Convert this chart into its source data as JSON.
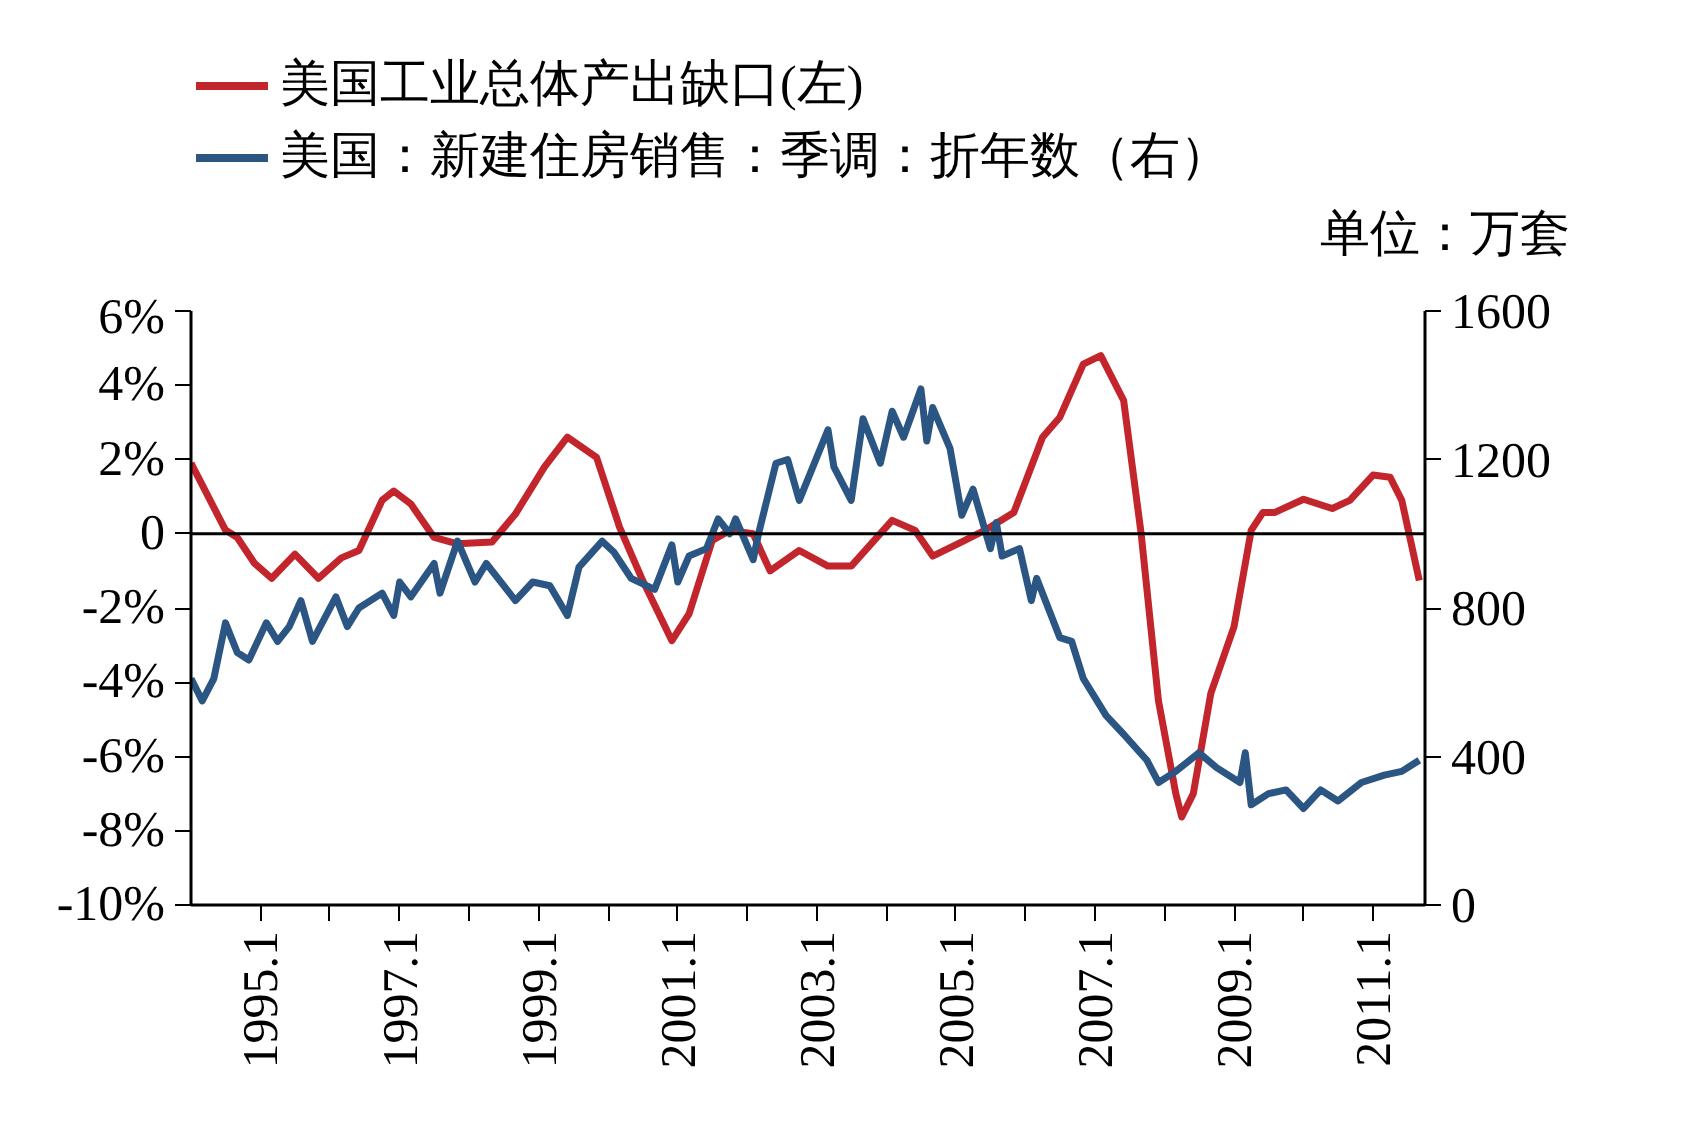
{
  "chart_data": {
    "type": "line",
    "y2label": "单位：万套",
    "xlim": [
      "1994-01",
      "2011-10"
    ],
    "xticks": [
      {
        "value": "1995-01",
        "label": "1995.1"
      },
      {
        "value": "1996-01",
        "label": null
      },
      {
        "value": "1997-01",
        "label": "1997.1"
      },
      {
        "value": "1998-01",
        "label": null
      },
      {
        "value": "1999-01",
        "label": "1999.1"
      },
      {
        "value": "2000-01",
        "label": null
      },
      {
        "value": "2001-01",
        "label": "2001.1"
      },
      {
        "value": "2002-01",
        "label": null
      },
      {
        "value": "2003-01",
        "label": "2003.1"
      },
      {
        "value": "2004-01",
        "label": null
      },
      {
        "value": "2005-01",
        "label": "2005.1"
      },
      {
        "value": "2006-01",
        "label": null
      },
      {
        "value": "2007-01",
        "label": "2007.1"
      },
      {
        "value": "2008-01",
        "label": null
      },
      {
        "value": "2009-01",
        "label": "2009.1"
      },
      {
        "value": "2010-01",
        "label": null
      },
      {
        "value": "2011-01",
        "label": "2011.1"
      }
    ],
    "ylim": [
      -10,
      6
    ],
    "yticks": [
      {
        "value": 6,
        "label": "6%"
      },
      {
        "value": 4,
        "label": "4%"
      },
      {
        "value": 2,
        "label": "2%"
      },
      {
        "value": 0,
        "label": "0"
      },
      {
        "value": -2,
        "label": "-2%"
      },
      {
        "value": -4,
        "label": "-4%"
      },
      {
        "value": -6,
        "label": "-6%"
      },
      {
        "value": -8,
        "label": "-8%"
      },
      {
        "value": -10,
        "label": "-10%"
      }
    ],
    "y2lim": [
      0,
      1600
    ],
    "y2ticks": [
      0,
      400,
      800,
      1200,
      1600
    ],
    "legend": "top left",
    "line_style": "solid",
    "ref_lines": [
      {
        "axis": "y",
        "value": 0,
        "color": "#000000"
      }
    ],
    "series": [
      {
        "name": "美国工业总体产出缺口(左)",
        "color": "#c3252c",
        "x": [
          "1994-01",
          "1994-07",
          "1994-09",
          "1994-12",
          "1995-03",
          "1995-07",
          "1995-11",
          "1996-03",
          "1996-06",
          "1996-10",
          "1996-12",
          "1997-03",
          "1997-07",
          "1997-11",
          "1998-05",
          "1998-09",
          "1999-02",
          "1999-06",
          "1999-11",
          "2000-03",
          "2000-07",
          "2000-12",
          "2001-03",
          "2001-07",
          "2001-10",
          "2002-02",
          "2002-05",
          "2002-10",
          "2003-03",
          "2003-07",
          "2004-02",
          "2004-06",
          "2004-09",
          "2005-02",
          "2005-06",
          "2005-11",
          "2006-04",
          "2006-07",
          "2006-11",
          "2007-02",
          "2007-06",
          "2007-09",
          "2007-12",
          "2008-03",
          "2008-04",
          "2008-06",
          "2008-09",
          "2009-01",
          "2009-04",
          "2009-06",
          "2009-08",
          "2010-01",
          "2010-06",
          "2010-09",
          "2011-01",
          "2011-04",
          "2011-06",
          "2011-09"
        ],
        "values": [
          1.9,
          0.1,
          -0.1,
          -0.8,
          -1.2,
          -0.55,
          -1.2,
          -0.65,
          -0.45,
          0.9,
          1.15,
          0.8,
          -0.1,
          -0.27,
          -0.22,
          0.53,
          1.8,
          2.6,
          2.06,
          0.18,
          -1.26,
          -2.88,
          -2.16,
          -0.18,
          0.09,
          0,
          -1.0,
          -0.45,
          -0.87,
          -0.87,
          0.36,
          0.09,
          -0.6,
          -0.22,
          0.09,
          0.57,
          2.6,
          3.14,
          4.57,
          4.8,
          3.59,
          0,
          -4.5,
          -7.0,
          -7.63,
          -7.0,
          -4.3,
          -2.5,
          0.09,
          0.57,
          0.57,
          0.93,
          0.68,
          0.9,
          1.58,
          1.52,
          0.9,
          -1.26
        ]
      },
      {
        "name": "美国：新建住房销售：季调：折年数（右）",
        "color": "#2b5583",
        "axis": "y2",
        "x": [
          "1994-01",
          "1994-03",
          "1994-05",
          "1994-07",
          "1994-09",
          "1994-11",
          "1995-02",
          "1995-04",
          "1995-06",
          "1995-08",
          "1995-10",
          "1996-02",
          "1996-04",
          "1996-06",
          "1996-10",
          "1996-12",
          "1997-01",
          "1997-03",
          "1997-07",
          "1997-08",
          "1997-11",
          "1998-02",
          "1998-04",
          "1998-09",
          "1998-12",
          "1999-03",
          "1999-06",
          "1999-08",
          "1999-12",
          "2000-02",
          "2000-05",
          "2000-09",
          "2000-12",
          "2001-01",
          "2001-03",
          "2001-06",
          "2001-08",
          "2001-10",
          "2001-11",
          "2002-02",
          "2002-03",
          "2002-06",
          "2002-08",
          "2002-10",
          "2003-03",
          "2003-04",
          "2003-07",
          "2003-09",
          "2003-12",
          "2004-02",
          "2004-04",
          "2004-07",
          "2004-08",
          "2004-09",
          "2004-12",
          "2005-02",
          "2005-04",
          "2005-07",
          "2005-08",
          "2005-09",
          "2005-12",
          "2006-02",
          "2006-03",
          "2006-07",
          "2006-09",
          "2006-11",
          "2007-03",
          "2007-06",
          "2007-10",
          "2007-12",
          "2008-03",
          "2008-07",
          "2008-10",
          "2009-02",
          "2009-03",
          "2009-04",
          "2009-07",
          "2009-10",
          "2010-01",
          "2010-04",
          "2010-07",
          "2010-11",
          "2011-03",
          "2011-06",
          "2011-09"
        ],
        "values": [
          610,
          550,
          610,
          760,
          680,
          660,
          760,
          710,
          750,
          820,
          710,
          830,
          750,
          800,
          840,
          780,
          870,
          830,
          920,
          840,
          980,
          870,
          920,
          820,
          870,
          860,
          780,
          910,
          980,
          950,
          880,
          850,
          970,
          870,
          940,
          960,
          1040,
          1000,
          1040,
          930,
          1000,
          1190,
          1200,
          1090,
          1280,
          1180,
          1090,
          1310,
          1190,
          1330,
          1260,
          1390,
          1250,
          1340,
          1230,
          1050,
          1120,
          960,
          1030,
          940,
          960,
          820,
          880,
          720,
          710,
          610,
          510,
          460,
          390,
          330,
          360,
          410,
          370,
          330,
          410,
          270,
          300,
          310,
          260,
          310,
          280,
          330,
          350,
          360,
          390
        ]
      }
    ]
  }
}
